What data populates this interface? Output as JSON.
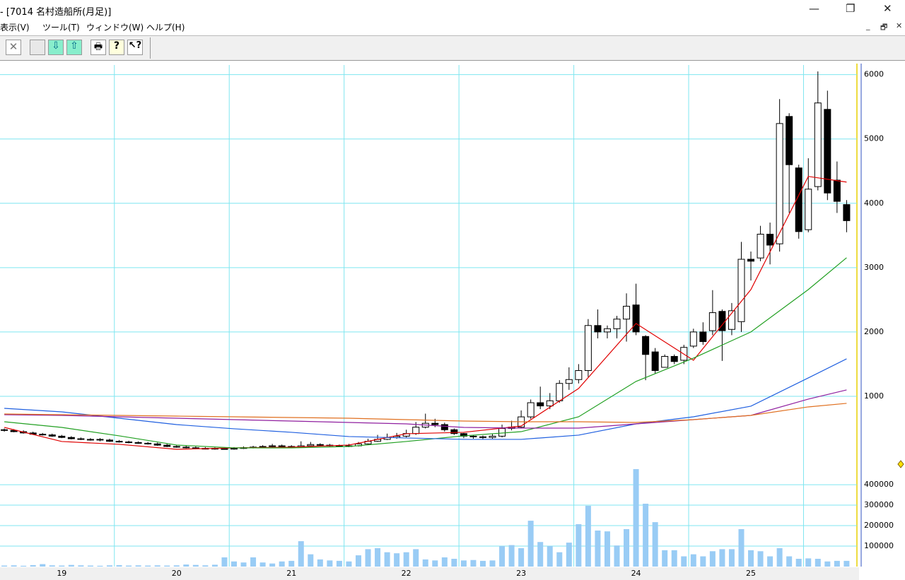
{
  "window": {
    "title": "- [7014 名村造船所(月足)]"
  },
  "menu": [
    "表示(V)",
    "ツール(T)",
    "ウィンドウ(W)",
    "ヘルプ(H)"
  ],
  "chart_data": [
    {
      "type": "candlestick",
      "xlim": [
        -0.45,
        89.3
      ],
      "xticks": [
        {
          "value": 6,
          "label": "19"
        },
        {
          "value": 18,
          "label": "20"
        },
        {
          "value": 30,
          "label": "21"
        },
        {
          "value": 42,
          "label": "22"
        },
        {
          "value": 54,
          "label": "23"
        },
        {
          "value": 66,
          "label": "24"
        },
        {
          "value": 78,
          "label": "25"
        }
      ],
      "ylim": [
        0,
        6150
      ],
      "yticks": [
        1000,
        2000,
        3000,
        4000,
        5000,
        6000
      ],
      "grid": true,
      "up_color": "#ffffff",
      "down_color": "#000000",
      "open": [
        480,
        470,
        450,
        430,
        410,
        400,
        380,
        360,
        340,
        330,
        330,
        320,
        300,
        290,
        280,
        270,
        260,
        240,
        220,
        210,
        200,
        190,
        190,
        185,
        180,
        190,
        200,
        210,
        220,
        230,
        220,
        210,
        230,
        250,
        240,
        230,
        220,
        230,
        260,
        300,
        330,
        360,
        380,
        420,
        520,
        580,
        560,
        480,
        420,
        380,
        370,
        360,
        380,
        500,
        520,
        680,
        900,
        850,
        930,
        1200,
        1260,
        1400,
        2100,
        2000,
        2050,
        2200,
        2420,
        1930,
        1690,
        1450,
        1620,
        1560,
        1780,
        2000,
        2020,
        2320,
        2040,
        2160,
        3130,
        3150,
        3520,
        3370,
        5350,
        4550,
        3590,
        4260,
        5460,
        4360,
        3980
      ],
      "high": [
        500,
        490,
        470,
        450,
        430,
        420,
        400,
        380,
        360,
        350,
        350,
        340,
        320,
        310,
        300,
        290,
        280,
        260,
        240,
        230,
        220,
        210,
        205,
        200,
        210,
        220,
        230,
        240,
        260,
        250,
        240,
        300,
        290,
        270,
        260,
        250,
        260,
        290,
        340,
        400,
        420,
        430,
        480,
        600,
        730,
        650,
        590,
        500,
        430,
        400,
        390,
        420,
        560,
        620,
        780,
        950,
        1150,
        1050,
        1250,
        1450,
        1500,
        2200,
        2350,
        2100,
        2250,
        2600,
        2750,
        1950,
        1750,
        1650,
        1650,
        1800,
        2050,
        2150,
        2650,
        2350,
        2450,
        3400,
        3250,
        3650,
        3700,
        5620,
        5400,
        4600,
        4700,
        6050,
        5750,
        4650,
        4050
      ],
      "low": [
        450,
        440,
        420,
        400,
        390,
        370,
        350,
        330,
        320,
        310,
        300,
        290,
        280,
        270,
        260,
        250,
        230,
        210,
        200,
        190,
        180,
        175,
        170,
        170,
        170,
        180,
        190,
        200,
        210,
        200,
        200,
        200,
        220,
        220,
        220,
        210,
        210,
        220,
        250,
        290,
        320,
        340,
        360,
        400,
        500,
        520,
        450,
        400,
        350,
        340,
        330,
        340,
        360,
        470,
        500,
        650,
        800,
        800,
        900,
        1100,
        1200,
        1300,
        1900,
        1900,
        1900,
        1850,
        1950,
        1250,
        1350,
        1450,
        1500,
        1500,
        1750,
        1800,
        1950,
        1550,
        1950,
        2000,
        2800,
        3100,
        3050,
        3250,
        3850,
        3450,
        3550,
        4200,
        4050,
        3850,
        3550
      ],
      "close": [
        470,
        450,
        430,
        410,
        400,
        380,
        360,
        340,
        330,
        330,
        320,
        300,
        290,
        280,
        270,
        260,
        240,
        220,
        210,
        200,
        190,
        190,
        185,
        180,
        190,
        200,
        210,
        220,
        230,
        220,
        210,
        230,
        250,
        240,
        230,
        220,
        230,
        260,
        300,
        330,
        360,
        380,
        420,
        520,
        580,
        560,
        480,
        420,
        380,
        370,
        360,
        380,
        500,
        520,
        680,
        900,
        850,
        930,
        1200,
        1260,
        1400,
        2100,
        2000,
        2050,
        2200,
        2400,
        2000,
        1650,
        1400,
        1620,
        1540,
        1760,
        2000,
        1850,
        2300,
        2020,
        2330,
        3130,
        3100,
        3520,
        3350,
        5240,
        4600,
        3560,
        4220,
        5560,
        4160,
        4030,
        3730
      ],
      "line_index": [
        0,
        6,
        12,
        18,
        24,
        30,
        36,
        42,
        48,
        54,
        60,
        66,
        72,
        78,
        84,
        88
      ],
      "lines": [
        {
          "color": "#e00000",
          "values": [
            516,
            297,
            253,
            176,
            198,
            209,
            242,
            418,
            440,
            538,
            1121,
            2132,
            1560,
            2659,
            4418,
            4330
          ]
        },
        {
          "color": "#22a022",
          "values": [
            604,
            516,
            385,
            242,
            198,
            198,
            220,
            297,
            385,
            450,
            681,
            1231,
            1593,
            2000,
            2659,
            3154
          ]
        },
        {
          "color": "#2060e0",
          "values": [
            813,
            758,
            659,
            560,
            495,
            440,
            374,
            352,
            330,
            330,
            396,
            571,
            681,
            846,
            1286,
            1582
          ]
        },
        {
          "color": "#9020a0",
          "values": [
            714,
            703,
            681,
            659,
            637,
            615,
            593,
            571,
            516,
            505,
            505,
            571,
            637,
            703,
            956,
            1099
          ]
        },
        {
          "color": "#e07020",
          "values": [
            725,
            714,
            703,
            692,
            681,
            670,
            659,
            637,
            615,
            604,
            604,
            593,
            637,
            703,
            835,
            890
          ]
        }
      ]
    },
    {
      "type": "bar",
      "ylim": [
        0,
        490000
      ],
      "yticks": [
        100000,
        200000,
        300000,
        400000
      ],
      "grid": true,
      "color": "#99ccf5",
      "values": [
        5000,
        6000,
        4000,
        7000,
        12000,
        6000,
        5000,
        8000,
        6000,
        5000,
        4000,
        6000,
        7000,
        5000,
        6000,
        5000,
        6000,
        5000,
        6000,
        10000,
        8000,
        6000,
        9000,
        45000,
        25000,
        20000,
        45000,
        20000,
        15000,
        25000,
        28000,
        124000,
        60000,
        35000,
        30000,
        28000,
        25000,
        55000,
        85000,
        90000,
        70000,
        65000,
        70000,
        85000,
        35000,
        30000,
        45000,
        38000,
        30000,
        32000,
        28000,
        30000,
        100000,
        105000,
        90000,
        224000,
        120000,
        100000,
        70000,
        117000,
        207000,
        297000,
        176000,
        172000,
        103000,
        183000,
        476000,
        307000,
        217000,
        80000,
        80000,
        50000,
        60000,
        50000,
        75000,
        85000,
        85000,
        183000,
        80000,
        75000,
        50000,
        90000,
        50000,
        38000,
        40000,
        38000,
        25000,
        28000,
        28000
      ]
    }
  ]
}
